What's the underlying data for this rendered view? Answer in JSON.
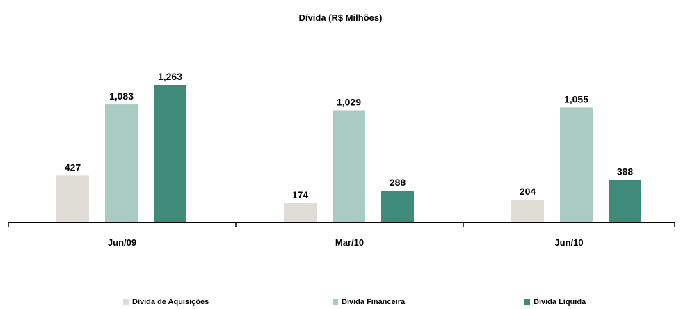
{
  "chart_data": {
    "type": "bar",
    "title": "Dívida (R$ Milhões)",
    "categories": [
      "Jun/09",
      "Mar/10",
      "Jun/10"
    ],
    "series": [
      {
        "name": "Dívida de Aquisições",
        "color": "#e0dcd6",
        "values": [
          427,
          174,
          204
        ],
        "labels": [
          "427",
          "174",
          "204"
        ]
      },
      {
        "name": "Dívida Financeira",
        "color": "#a9cbc1",
        "values": [
          1083,
          1029,
          1055
        ],
        "labels": [
          "1,083",
          "1,029",
          "1,055"
        ]
      },
      {
        "name": "Dívida Líquida",
        "color": "#3f8a78",
        "values": [
          1263,
          288,
          388
        ],
        "labels": [
          "1,263",
          "288",
          "388"
        ]
      }
    ],
    "ylim": [
      0,
      1400
    ],
    "grid": false,
    "legend_position": "bottom"
  }
}
